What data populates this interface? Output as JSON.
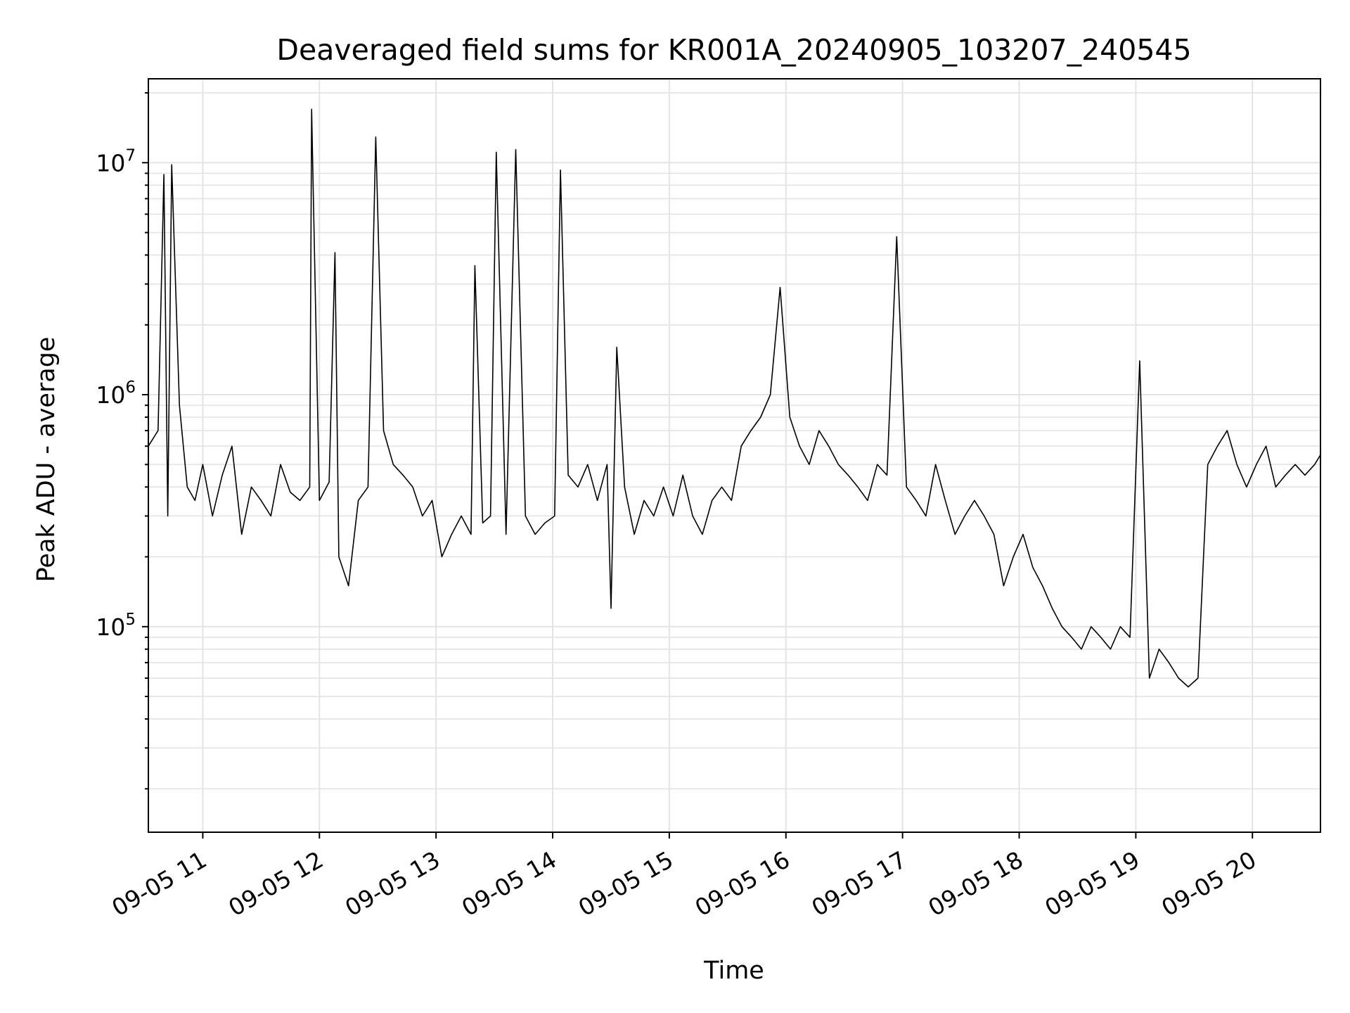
{
  "chart_data": {
    "type": "line",
    "title": "Deaveraged field sums for KR001A_20240905_103207_240545",
    "xlabel": "Time",
    "ylabel": "Peak ADU - average",
    "yscale": "log",
    "grid": true,
    "legend": "none",
    "line_color": "#000000",
    "x_ticks": [
      "09-05 11",
      "09-05 12",
      "09-05 13",
      "09-05 14",
      "09-05 15",
      "09-05 16",
      "09-05 17",
      "09-05 18",
      "09-05 19",
      "09-05 20"
    ],
    "y_ticks": [
      {
        "value": 100000,
        "base": "10",
        "exp": "5"
      },
      {
        "value": 1000000,
        "base": "10",
        "exp": "6"
      },
      {
        "value": 10000000,
        "base": "10",
        "exp": "7"
      }
    ],
    "xlim": [
      "2024-09-05 10:32",
      "2024-09-05 20:35"
    ],
    "ylim": [
      13000,
      23000000
    ],
    "series": [
      {
        "x": [
          "2024-09-05 10:32",
          "2024-09-05 10:37",
          "2024-09-05 10:40",
          "2024-09-05 10:42",
          "2024-09-05 10:44",
          "2024-09-05 10:48",
          "2024-09-05 10:52",
          "2024-09-05 10:56",
          "2024-09-05 11:00",
          "2024-09-05 11:05",
          "2024-09-05 11:10",
          "2024-09-05 11:15",
          "2024-09-05 11:20",
          "2024-09-05 11:25",
          "2024-09-05 11:30",
          "2024-09-05 11:35",
          "2024-09-05 11:40",
          "2024-09-05 11:45",
          "2024-09-05 11:50",
          "2024-09-05 11:55",
          "2024-09-05 11:56",
          "2024-09-05 12:00",
          "2024-09-05 12:05",
          "2024-09-05 12:08",
          "2024-09-05 12:10",
          "2024-09-05 12:15",
          "2024-09-05 12:20",
          "2024-09-05 12:25",
          "2024-09-05 12:29",
          "2024-09-05 12:33",
          "2024-09-05 12:38",
          "2024-09-05 12:43",
          "2024-09-05 12:48",
          "2024-09-05 12:53",
          "2024-09-05 12:58",
          "2024-09-05 13:03",
          "2024-09-05 13:08",
          "2024-09-05 13:13",
          "2024-09-05 13:18",
          "2024-09-05 13:20",
          "2024-09-05 13:24",
          "2024-09-05 13:28",
          "2024-09-05 13:31",
          "2024-09-05 13:36",
          "2024-09-05 13:41",
          "2024-09-05 13:46",
          "2024-09-05 13:51",
          "2024-09-05 13:56",
          "2024-09-05 14:01",
          "2024-09-05 14:04",
          "2024-09-05 14:08",
          "2024-09-05 14:13",
          "2024-09-05 14:18",
          "2024-09-05 14:23",
          "2024-09-05 14:28",
          "2024-09-05 14:30",
          "2024-09-05 14:33",
          "2024-09-05 14:37",
          "2024-09-05 14:42",
          "2024-09-05 14:47",
          "2024-09-05 14:52",
          "2024-09-05 14:57",
          "2024-09-05 15:02",
          "2024-09-05 15:07",
          "2024-09-05 15:12",
          "2024-09-05 15:17",
          "2024-09-05 15:22",
          "2024-09-05 15:27",
          "2024-09-05 15:32",
          "2024-09-05 15:37",
          "2024-09-05 15:42",
          "2024-09-05 15:47",
          "2024-09-05 15:52",
          "2024-09-05 15:57",
          "2024-09-05 16:02",
          "2024-09-05 16:07",
          "2024-09-05 16:12",
          "2024-09-05 16:17",
          "2024-09-05 16:22",
          "2024-09-05 16:27",
          "2024-09-05 16:32",
          "2024-09-05 16:37",
          "2024-09-05 16:42",
          "2024-09-05 16:47",
          "2024-09-05 16:52",
          "2024-09-05 16:57",
          "2024-09-05 17:02",
          "2024-09-05 17:07",
          "2024-09-05 17:12",
          "2024-09-05 17:17",
          "2024-09-05 17:22",
          "2024-09-05 17:27",
          "2024-09-05 17:32",
          "2024-09-05 17:37",
          "2024-09-05 17:42",
          "2024-09-05 17:47",
          "2024-09-05 17:52",
          "2024-09-05 17:57",
          "2024-09-05 18:02",
          "2024-09-05 18:07",
          "2024-09-05 18:12",
          "2024-09-05 18:17",
          "2024-09-05 18:22",
          "2024-09-05 18:27",
          "2024-09-05 18:32",
          "2024-09-05 18:37",
          "2024-09-05 18:42",
          "2024-09-05 18:47",
          "2024-09-05 18:52",
          "2024-09-05 18:57",
          "2024-09-05 19:02",
          "2024-09-05 19:07",
          "2024-09-05 19:12",
          "2024-09-05 19:17",
          "2024-09-05 19:22",
          "2024-09-05 19:27",
          "2024-09-05 19:32",
          "2024-09-05 19:37",
          "2024-09-05 19:42",
          "2024-09-05 19:47",
          "2024-09-05 19:52",
          "2024-09-05 19:57",
          "2024-09-05 20:02",
          "2024-09-05 20:07",
          "2024-09-05 20:12",
          "2024-09-05 20:17",
          "2024-09-05 20:22",
          "2024-09-05 20:27",
          "2024-09-05 20:32",
          "2024-09-05 20:35"
        ],
        "y": [
          600000,
          700000,
          8900000,
          300000,
          9800000,
          900000,
          400000,
          350000,
          500000,
          300000,
          450000,
          600000,
          250000,
          400000,
          350000,
          300000,
          500000,
          380000,
          350000,
          400000,
          17000000,
          350000,
          420000,
          4100000,
          200000,
          150000,
          350000,
          400000,
          12900000,
          700000,
          500000,
          450000,
          400000,
          300000,
          350000,
          200000,
          250000,
          300000,
          250000,
          3600000,
          280000,
          300000,
          11100000,
          250000,
          11400000,
          300000,
          250000,
          280000,
          300000,
          9300000,
          450000,
          400000,
          500000,
          350000,
          500000,
          120000,
          1600000,
          400000,
          250000,
          350000,
          300000,
          400000,
          300000,
          450000,
          300000,
          250000,
          350000,
          400000,
          350000,
          600000,
          700000,
          800000,
          1000000,
          2900000,
          800000,
          600000,
          500000,
          700000,
          600000,
          500000,
          450000,
          400000,
          350000,
          500000,
          450000,
          4800000,
          400000,
          350000,
          300000,
          500000,
          350000,
          250000,
          300000,
          350000,
          300000,
          250000,
          150000,
          200000,
          250000,
          180000,
          150000,
          120000,
          100000,
          90000,
          80000,
          100000,
          90000,
          80000,
          100000,
          90000,
          1400000,
          60000,
          80000,
          70000,
          60000,
          55000,
          60000,
          500000,
          600000,
          700000,
          500000,
          400000,
          500000,
          600000,
          400000,
          450000,
          500000,
          450000,
          500000,
          550000
        ]
      }
    ]
  }
}
